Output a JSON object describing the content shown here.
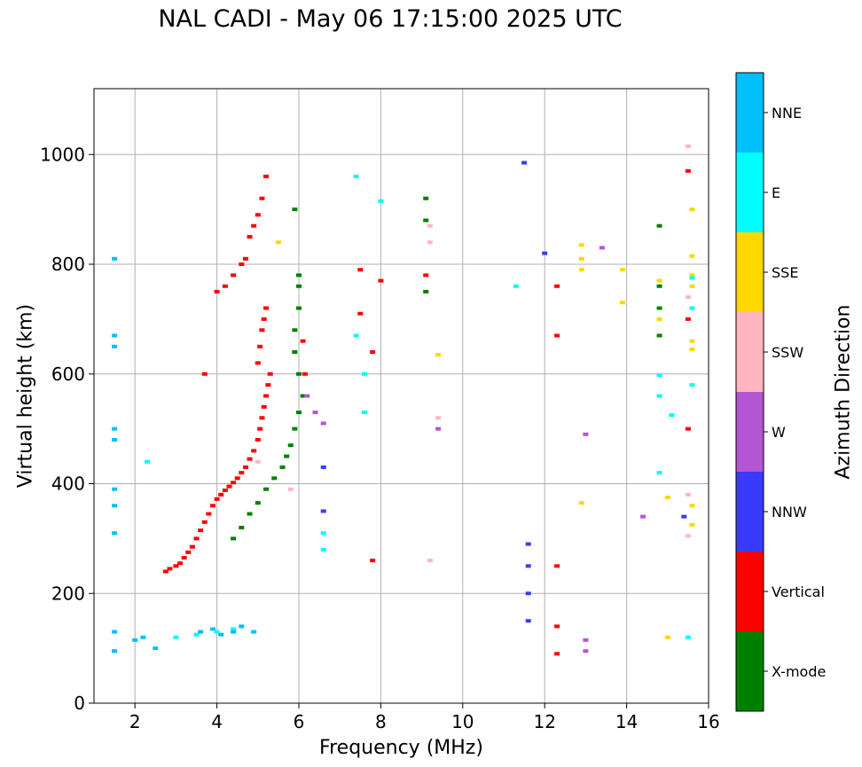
{
  "chart_data": {
    "type": "scatter",
    "title": "NAL CADI - May 06 17:15:00 2025 UTC",
    "xlabel": "Frequency (MHz)",
    "ylabel": "Virtual height (km)",
    "xlim": [
      1,
      16
    ],
    "ylim": [
      0,
      1120
    ],
    "xticks": [
      2,
      4,
      6,
      8,
      10,
      12,
      14,
      16
    ],
    "yticks": [
      0,
      200,
      400,
      600,
      800,
      1000
    ],
    "grid": true,
    "colorbar": {
      "label": "Azimuth Direction",
      "categories": [
        {
          "name": "X-mode",
          "color": "#008000"
        },
        {
          "name": "Vertical",
          "color": "#ff0000"
        },
        {
          "name": "NNW",
          "color": "#3a3aff"
        },
        {
          "name": "W",
          "color": "#b455d3"
        },
        {
          "name": "SSW",
          "color": "#ffb6c1"
        },
        {
          "name": "SSE",
          "color": "#ffd700"
        },
        {
          "name": "E",
          "color": "#00ffff"
        },
        {
          "name": "NNE",
          "color": "#00bfff"
        }
      ]
    },
    "series": [
      {
        "name": "Vertical",
        "points": [
          [
            2.75,
            240
          ],
          [
            2.85,
            245
          ],
          [
            3.0,
            250
          ],
          [
            3.1,
            255
          ],
          [
            3.2,
            265
          ],
          [
            3.3,
            275
          ],
          [
            3.4,
            285
          ],
          [
            3.5,
            300
          ],
          [
            3.6,
            315
          ],
          [
            3.7,
            330
          ],
          [
            3.8,
            345
          ],
          [
            3.9,
            360
          ],
          [
            4.0,
            372
          ],
          [
            4.1,
            380
          ],
          [
            4.2,
            388
          ],
          [
            4.3,
            395
          ],
          [
            4.4,
            402
          ],
          [
            4.5,
            410
          ],
          [
            4.6,
            420
          ],
          [
            4.7,
            430
          ],
          [
            4.8,
            445
          ],
          [
            4.9,
            460
          ],
          [
            5.0,
            480
          ],
          [
            5.05,
            500
          ],
          [
            5.1,
            520
          ],
          [
            5.15,
            540
          ],
          [
            5.2,
            560
          ],
          [
            5.25,
            580
          ],
          [
            5.3,
            600
          ],
          [
            5.0,
            620
          ],
          [
            5.05,
            650
          ],
          [
            5.1,
            680
          ],
          [
            5.15,
            700
          ],
          [
            5.2,
            720
          ],
          [
            4.0,
            750
          ],
          [
            4.2,
            760
          ],
          [
            4.4,
            780
          ],
          [
            4.6,
            800
          ],
          [
            4.7,
            810
          ],
          [
            4.8,
            850
          ],
          [
            4.9,
            870
          ],
          [
            5.0,
            890
          ],
          [
            5.1,
            920
          ],
          [
            5.2,
            960
          ],
          [
            3.7,
            600
          ],
          [
            6.1,
            660
          ],
          [
            6.15,
            600
          ],
          [
            7.5,
            790
          ],
          [
            7.5,
            710
          ],
          [
            7.8,
            640
          ],
          [
            8.0,
            770
          ],
          [
            9.1,
            780
          ],
          [
            12.3,
            760
          ],
          [
            12.3,
            670
          ],
          [
            12.3,
            250
          ],
          [
            12.3,
            140
          ],
          [
            12.3,
            90
          ],
          [
            15.5,
            970
          ],
          [
            15.5,
            700
          ],
          [
            15.5,
            500
          ],
          [
            7.8,
            260
          ]
        ]
      },
      {
        "name": "X-mode",
        "points": [
          [
            4.4,
            300
          ],
          [
            4.6,
            320
          ],
          [
            4.8,
            345
          ],
          [
            5.0,
            365
          ],
          [
            5.2,
            390
          ],
          [
            5.4,
            410
          ],
          [
            5.6,
            430
          ],
          [
            5.7,
            450
          ],
          [
            5.8,
            470
          ],
          [
            5.9,
            500
          ],
          [
            6.0,
            530
          ],
          [
            6.1,
            560
          ],
          [
            6.0,
            600
          ],
          [
            5.9,
            640
          ],
          [
            5.9,
            680
          ],
          [
            6.0,
            720
          ],
          [
            6.0,
            760
          ],
          [
            6.0,
            780
          ],
          [
            5.9,
            900
          ],
          [
            9.1,
            920
          ],
          [
            9.1,
            880
          ],
          [
            9.1,
            750
          ],
          [
            14.8,
            870
          ],
          [
            14.8,
            760
          ],
          [
            14.8,
            720
          ],
          [
            14.8,
            670
          ]
        ]
      },
      {
        "name": "NNW",
        "points": [
          [
            11.5,
            985
          ],
          [
            12.0,
            820
          ],
          [
            11.6,
            290
          ],
          [
            11.6,
            250
          ],
          [
            11.6,
            200
          ],
          [
            11.6,
            150
          ],
          [
            6.6,
            430
          ],
          [
            6.6,
            350
          ],
          [
            15.4,
            340
          ]
        ]
      },
      {
        "name": "W",
        "points": [
          [
            13.4,
            830
          ],
          [
            13.0,
            490
          ],
          [
            13.0,
            115
          ],
          [
            13.0,
            95
          ],
          [
            9.4,
            500
          ],
          [
            6.4,
            530
          ],
          [
            6.2,
            560
          ],
          [
            14.4,
            340
          ],
          [
            6.6,
            510
          ]
        ]
      },
      {
        "name": "SSW",
        "points": [
          [
            15.5,
            1015
          ],
          [
            15.5,
            740
          ],
          [
            15.5,
            380
          ],
          [
            15.5,
            305
          ],
          [
            9.2,
            260
          ],
          [
            9.4,
            520
          ],
          [
            9.2,
            840
          ],
          [
            9.2,
            870
          ],
          [
            5.0,
            440
          ],
          [
            5.8,
            390
          ]
        ]
      },
      {
        "name": "SSE",
        "points": [
          [
            12.9,
            835
          ],
          [
            12.9,
            810
          ],
          [
            12.9,
            790
          ],
          [
            12.9,
            365
          ],
          [
            13.9,
            790
          ],
          [
            13.9,
            730
          ],
          [
            14.8,
            770
          ],
          [
            14.8,
            700
          ],
          [
            15.6,
            900
          ],
          [
            15.6,
            815
          ],
          [
            15.6,
            780
          ],
          [
            15.6,
            760
          ],
          [
            15.6,
            660
          ],
          [
            15.6,
            645
          ],
          [
            15.6,
            360
          ],
          [
            15.6,
            325
          ],
          [
            15.0,
            375
          ],
          [
            15.0,
            120
          ],
          [
            9.4,
            635
          ],
          [
            5.5,
            840
          ]
        ]
      },
      {
        "name": "E",
        "points": [
          [
            11.3,
            760
          ],
          [
            14.8,
            598
          ],
          [
            14.8,
            560
          ],
          [
            14.8,
            420
          ],
          [
            15.1,
            525
          ],
          [
            15.6,
            775
          ],
          [
            15.6,
            720
          ],
          [
            15.6,
            580
          ],
          [
            15.5,
            120
          ],
          [
            7.6,
            600
          ],
          [
            7.6,
            530
          ],
          [
            7.4,
            670
          ],
          [
            7.4,
            960
          ],
          [
            8.0,
            915
          ],
          [
            6.6,
            310
          ],
          [
            6.6,
            280
          ],
          [
            2.3,
            440
          ],
          [
            4.0,
            130
          ],
          [
            4.4,
            135
          ],
          [
            3.5,
            125
          ],
          [
            3.0,
            120
          ]
        ]
      },
      {
        "name": "NNE",
        "points": [
          [
            1.5,
            670
          ],
          [
            1.5,
            650
          ],
          [
            1.5,
            500
          ],
          [
            1.5,
            480
          ],
          [
            1.5,
            390
          ],
          [
            1.5,
            360
          ],
          [
            1.5,
            310
          ],
          [
            1.5,
            130
          ],
          [
            1.5,
            95
          ],
          [
            3.6,
            130
          ],
          [
            3.9,
            135
          ],
          [
            4.1,
            125
          ],
          [
            4.4,
            130
          ],
          [
            4.6,
            140
          ],
          [
            4.9,
            130
          ],
          [
            2.5,
            100
          ],
          [
            2.0,
            115
          ],
          [
            2.2,
            120
          ],
          [
            1.5,
            810
          ]
        ]
      }
    ]
  }
}
